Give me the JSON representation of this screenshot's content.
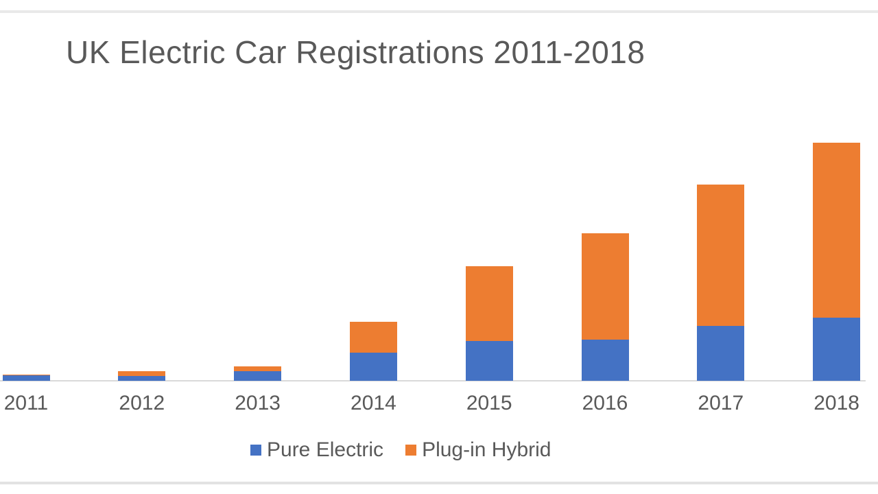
{
  "chart_data": {
    "type": "bar",
    "stacked": true,
    "title": "UK Electric Car Registrations 2011-2018",
    "categories": [
      "2011",
      "2012",
      "2013",
      "2014",
      "2015",
      "2016",
      "2017",
      "2018"
    ],
    "series": [
      {
        "name": "Pure Electric",
        "color": "#4472C4",
        "values": [
          1400,
          1250,
          2400,
          7000,
          9800,
          10200,
          13600,
          15600
        ]
      },
      {
        "name": "Plug-in Hybrid",
        "color": "#ED7D31",
        "values": [
          100,
          1150,
          1250,
          7650,
          18600,
          26400,
          35000,
          43400
        ]
      }
    ],
    "xlabel": "",
    "ylabel": "",
    "ylim": [
      0,
      61000
    ],
    "y_axis_visible": false,
    "gridlines": false,
    "legend_position": "bottom",
    "axis_line_color": "#d9d9d9",
    "text_color": "#595959",
    "background_color": "#ffffff"
  }
}
